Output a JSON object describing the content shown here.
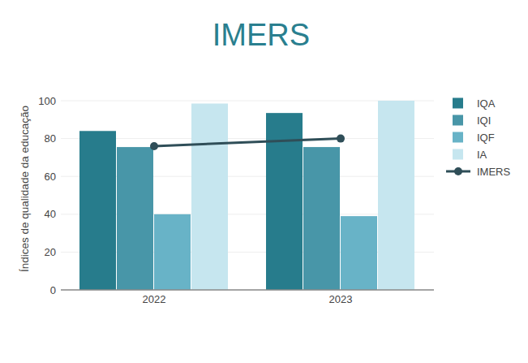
{
  "chart_data": {
    "type": "bar",
    "title": "IMERS",
    "y_label": "Índices de qualidade da educação",
    "categories": [
      "2022",
      "2023"
    ],
    "series": [
      {
        "name": "IQA",
        "type": "bar",
        "color": "#277c8c",
        "values": [
          84,
          93.5
        ]
      },
      {
        "name": "IQI",
        "type": "bar",
        "color": "#4896a8",
        "values": [
          75.5,
          75.5
        ]
      },
      {
        "name": "IQF",
        "type": "bar",
        "color": "#68b3c7",
        "values": [
          40,
          39
        ]
      },
      {
        "name": "IA",
        "type": "bar",
        "color": "#c6e6ef",
        "values": [
          98.5,
          100
        ]
      },
      {
        "name": "IMERS",
        "type": "line",
        "color": "#2f4e58",
        "marker": "circle",
        "line_style": "solid",
        "values": [
          76,
          80
        ]
      }
    ],
    "ylim": [
      0,
      100
    ],
    "yticks": [
      0,
      20,
      40,
      60,
      80,
      100
    ],
    "grid": true,
    "legend": "right"
  }
}
